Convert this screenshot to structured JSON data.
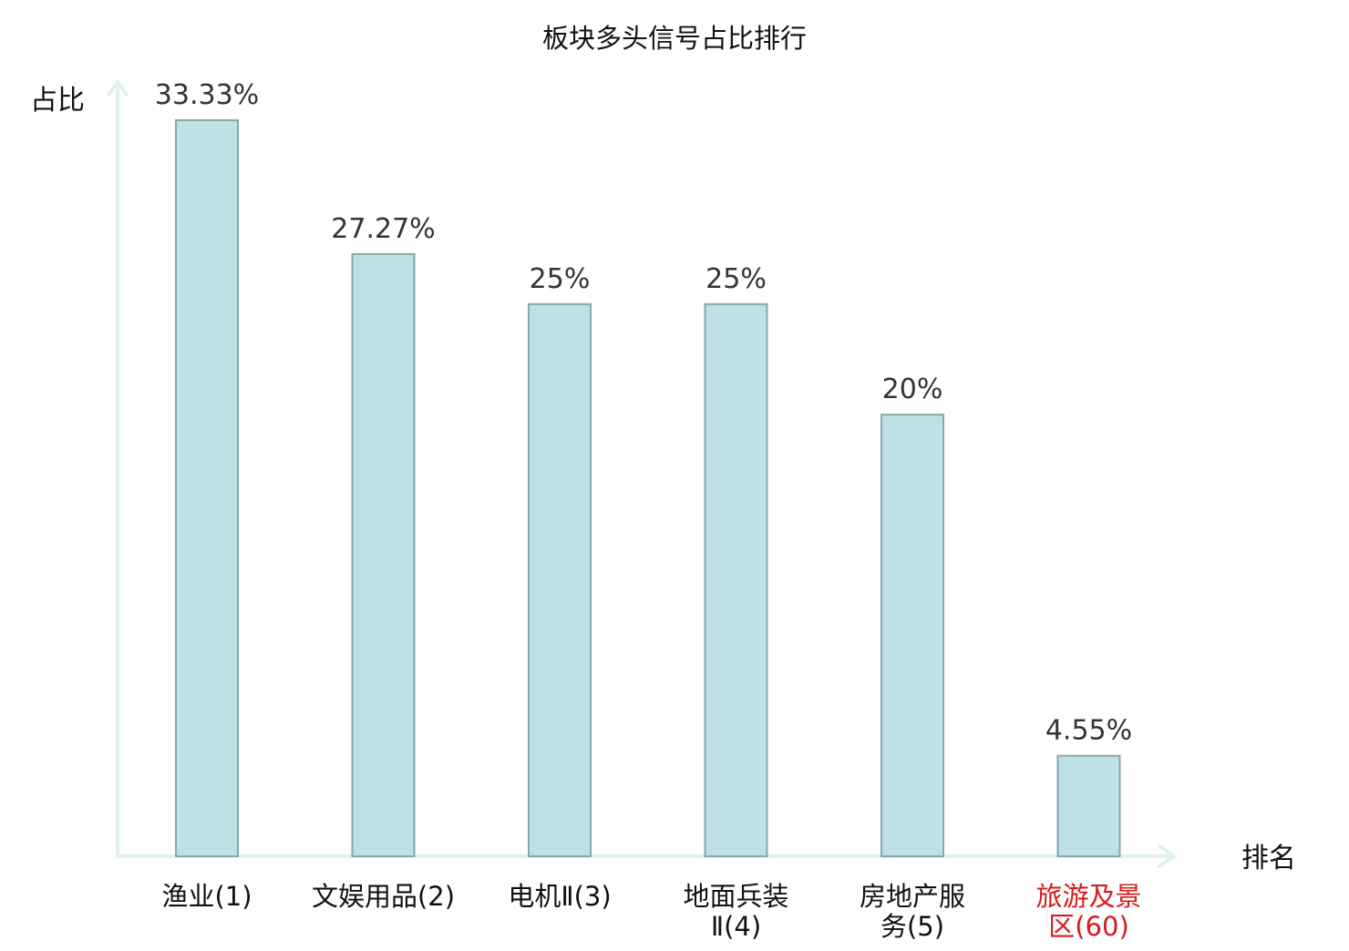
{
  "chart_data": {
    "type": "bar",
    "title": "板块多头信号占比排行",
    "xlabel": "排名",
    "ylabel": "占比",
    "categories": [
      [
        "渔业(1)"
      ],
      [
        "文娱用品(2)"
      ],
      [
        "电机Ⅱ(3)"
      ],
      [
        "地面兵装",
        "Ⅱ(4)"
      ],
      [
        "房地产服",
        "务(5)"
      ],
      [
        "旅游及景",
        "区(60)"
      ]
    ],
    "values": [
      33.33,
      27.27,
      25,
      25,
      20,
      4.55
    ],
    "value_labels": [
      "33.33%",
      "27.27%",
      "25%",
      "25%",
      "20%",
      "4.55%"
    ],
    "highlight_index": 5,
    "ylim": [
      0,
      35
    ],
    "grid": false,
    "colors": {
      "bar_fill": "#bde1e4",
      "bar_stroke": "#8aa7aa",
      "axis": "#dff2ef",
      "label_text": "#333333",
      "tick_text": "#111111",
      "highlight_text": "#d71a1a"
    }
  }
}
